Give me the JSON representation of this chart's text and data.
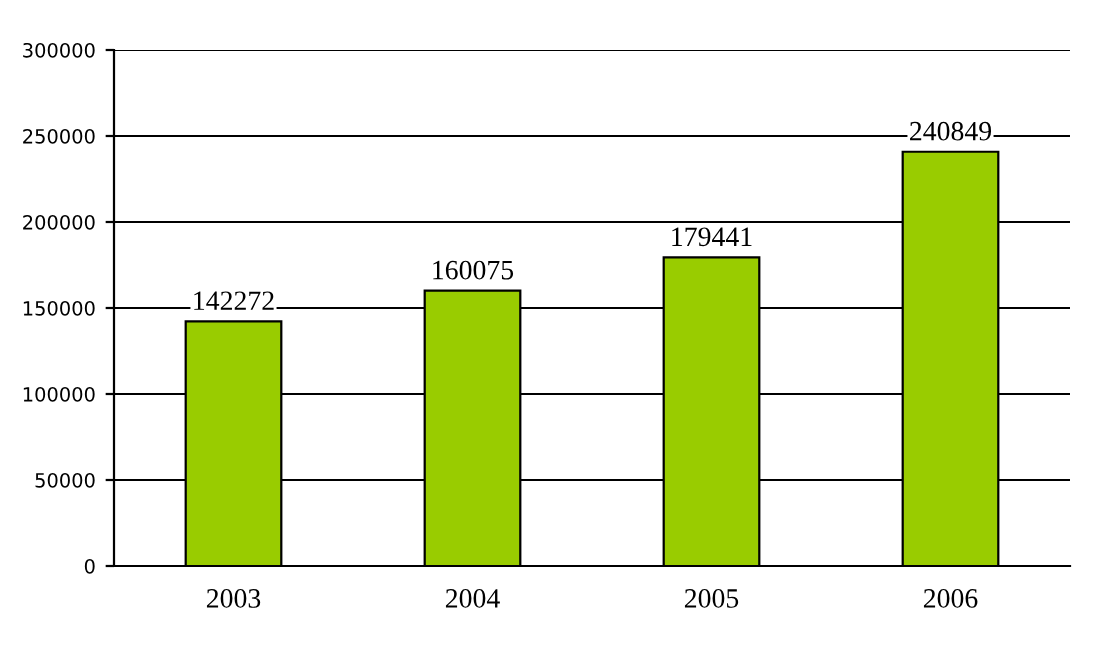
{
  "chart_data": {
    "type": "bar",
    "categories": [
      "2003",
      "2004",
      "2005",
      "2006"
    ],
    "values": [
      142272,
      160075,
      179441,
      240849
    ],
    "color": "#99cc00",
    "ylim": [
      0,
      300000
    ],
    "yticks": [
      0,
      50000,
      100000,
      150000,
      200000,
      250000,
      300000
    ],
    "grid": "y",
    "data_labels": true
  }
}
